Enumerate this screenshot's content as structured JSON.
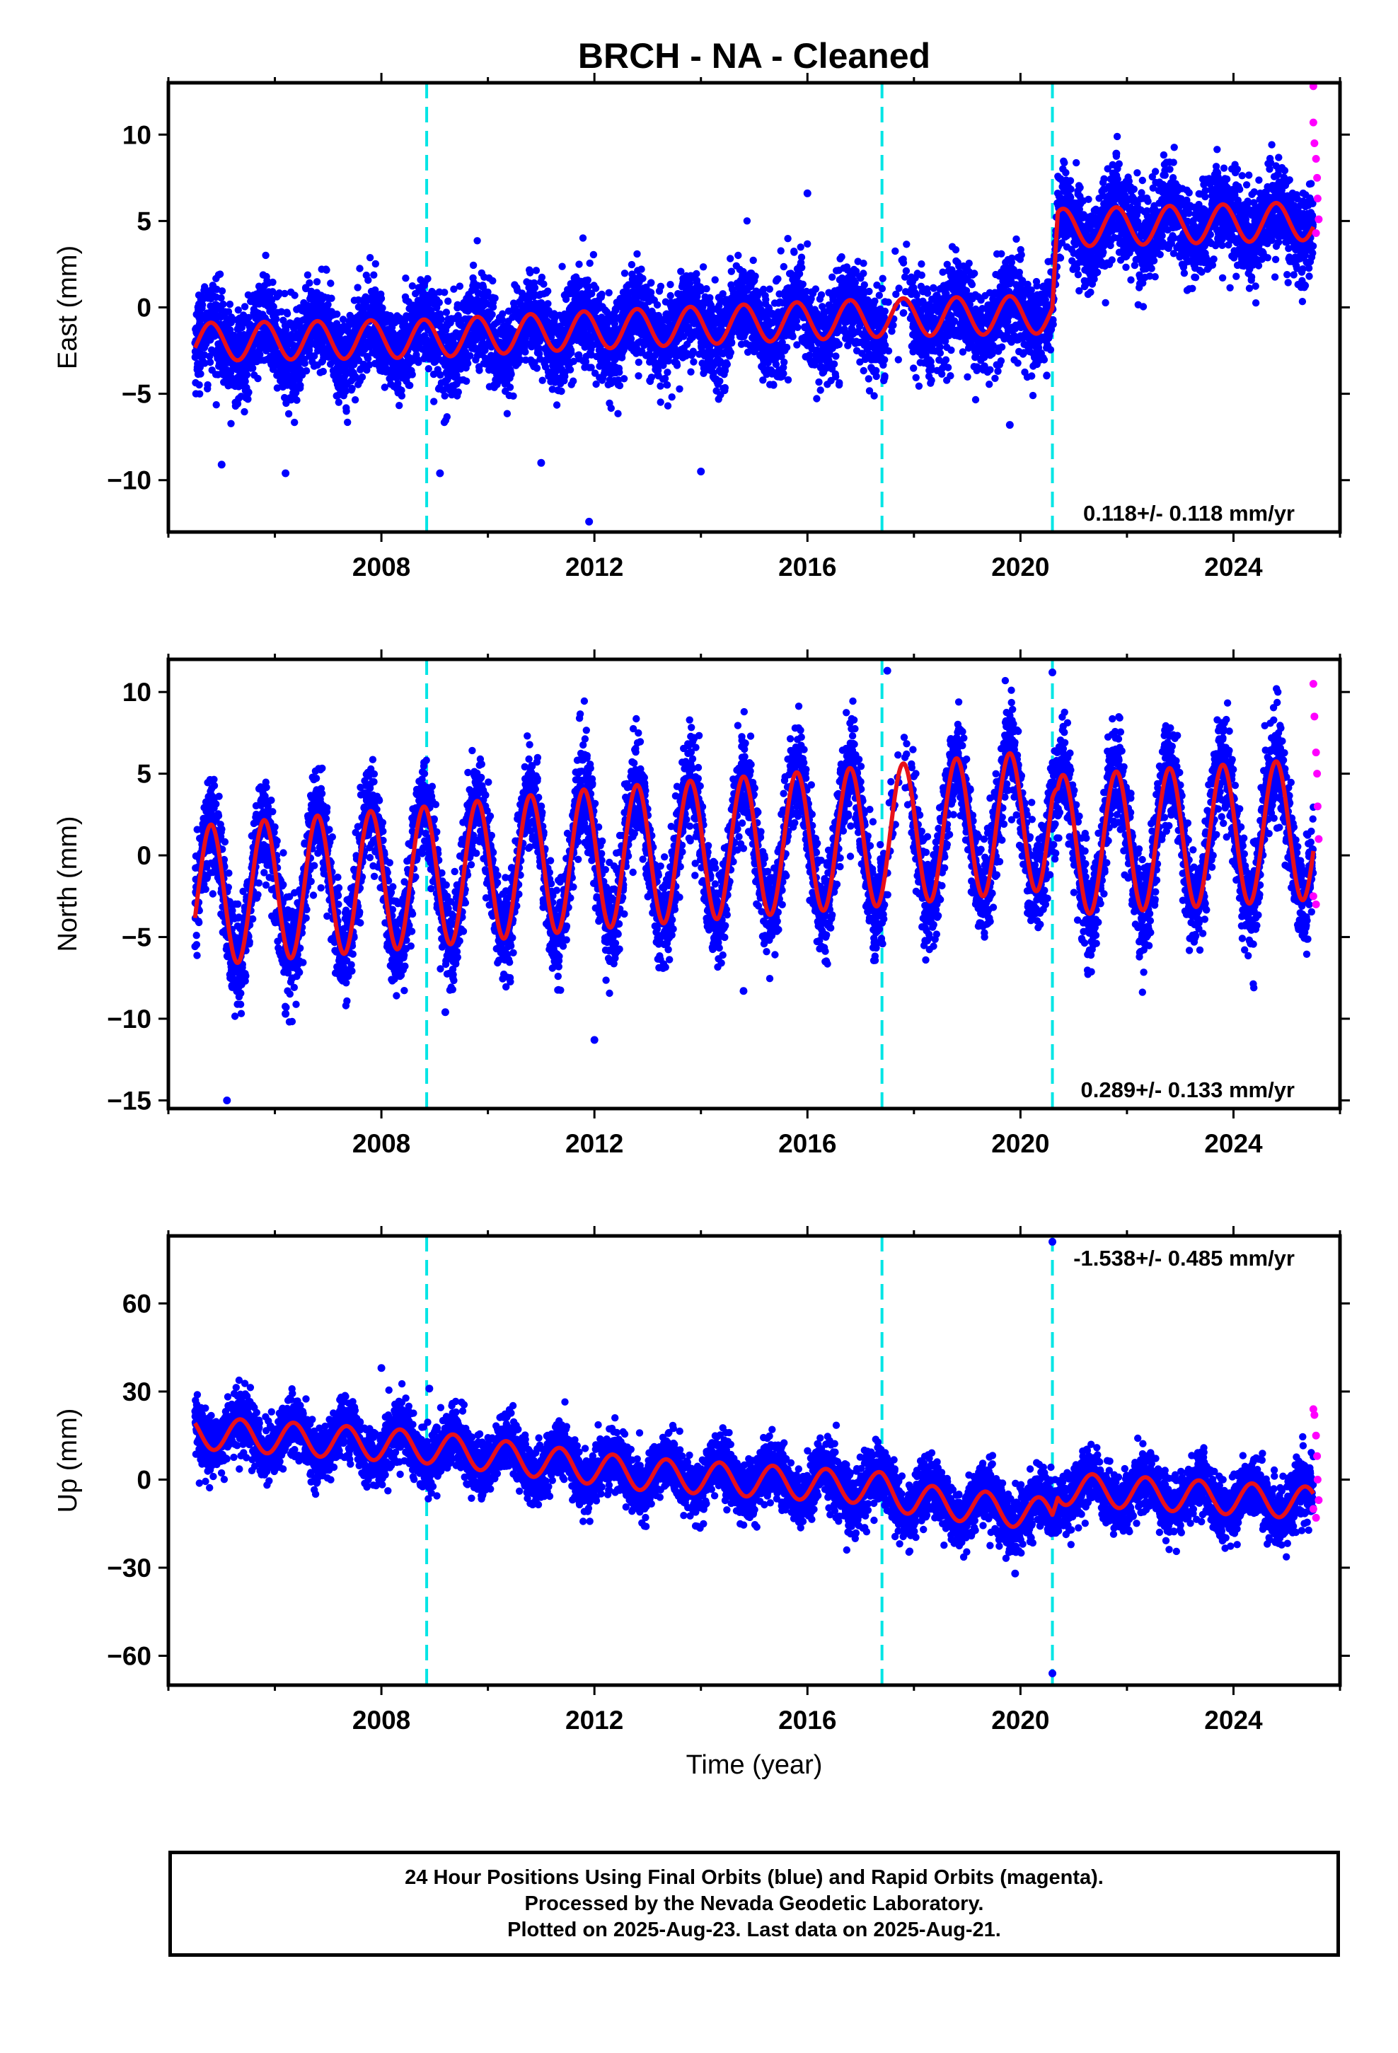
{
  "chart_data": [
    {
      "type": "scatter",
      "panel": "east",
      "title": "BRCH  - NA - Cleaned",
      "ylabel": "East (mm)",
      "xlim": [
        2004.0,
        2026.0
      ],
      "ylim": [
        -13,
        13
      ],
      "yticks": [
        -10,
        -5,
        0,
        5,
        10
      ],
      "xticks": [
        2008,
        2012,
        2016,
        2020,
        2024
      ],
      "rate_text": "0.118+/- 0.118 mm/yr",
      "offset_epochs": [
        2008.85,
        2017.4,
        2020.6
      ],
      "series": [
        {
          "name": "Final Orbits",
          "color": "#0000ff",
          "start": 2004.5,
          "end": 2025.5,
          "trend": [
            [
              2004.5,
              -2.0
            ],
            [
              2008.85,
              -1.8
            ],
            [
              2012.0,
              -1.3
            ],
            [
              2017.4,
              -0.6
            ],
            [
              2020.6,
              -0.4
            ],
            [
              2020.7,
              4.6
            ],
            [
              2025.5,
              5.0
            ]
          ],
          "scatter_sd": 1.3,
          "outliers": [
            [
              2005.0,
              -9.1
            ],
            [
              2006.2,
              -9.6
            ],
            [
              2009.1,
              -9.6
            ],
            [
              2011.0,
              -9.0
            ],
            [
              2011.9,
              -12.4
            ],
            [
              2014.0,
              -9.5
            ],
            [
              2019.8,
              -6.8
            ],
            [
              2016.0,
              6.6
            ],
            [
              2021.8,
              8.9
            ]
          ]
        },
        {
          "name": "Rapid Orbits",
          "color": "#ff00ff",
          "start": 2025.45,
          "end": 2025.62,
          "points": [
            [
              2025.5,
              12.8
            ],
            [
              2025.5,
              10.7
            ],
            [
              2025.52,
              9.5
            ],
            [
              2025.55,
              8.6
            ],
            [
              2025.57,
              7.5
            ],
            [
              2025.58,
              6.3
            ],
            [
              2025.6,
              5.1
            ],
            [
              2025.55,
              4.3
            ]
          ]
        }
      ],
      "model": {
        "name": "Model fit",
        "color": "#e8101a",
        "amplitude": 1.1,
        "phase": 0.55,
        "annual_peak_shift": 0.0
      }
    },
    {
      "type": "scatter",
      "panel": "north",
      "ylabel": "North (mm)",
      "xlim": [
        2004.0,
        2026.0
      ],
      "ylim": [
        -15.5,
        12
      ],
      "yticks": [
        -15,
        -10,
        -5,
        0,
        5,
        10
      ],
      "xticks": [
        2008,
        2012,
        2016,
        2020,
        2024
      ],
      "rate_text": "0.289+/- 0.133 mm/yr",
      "offset_epochs": [
        2008.85,
        2017.4,
        2020.6
      ],
      "series": [
        {
          "name": "Final Orbits",
          "color": "#0000ff",
          "start": 2004.5,
          "end": 2025.5,
          "trend": [
            [
              2004.5,
              -2.5
            ],
            [
              2008.85,
              -1.3
            ],
            [
              2012.0,
              -0.2
            ],
            [
              2017.4,
              1.2
            ],
            [
              2020.6,
              2.2
            ],
            [
              2020.7,
              0.6
            ],
            [
              2025.5,
              1.6
            ]
          ],
          "scatter_sd": 1.5,
          "outliers": [
            [
              2005.1,
              -15.0
            ],
            [
              2006.2,
              -9.7
            ],
            [
              2009.2,
              -9.6
            ],
            [
              2012.0,
              -11.3
            ],
            [
              2014.8,
              -8.3
            ],
            [
              2017.5,
              11.3
            ],
            [
              2020.6,
              11.2
            ]
          ]
        },
        {
          "name": "Rapid Orbits",
          "color": "#ff00ff",
          "start": 2025.45,
          "end": 2025.62,
          "points": [
            [
              2025.5,
              10.5
            ],
            [
              2025.52,
              8.5
            ],
            [
              2025.55,
              6.3
            ],
            [
              2025.57,
              5.0
            ],
            [
              2025.58,
              3.0
            ],
            [
              2025.6,
              1.0
            ],
            [
              2025.5,
              -2.5
            ],
            [
              2025.55,
              -3.0
            ]
          ]
        }
      ],
      "model": {
        "name": "Model fit",
        "color": "#e8101a",
        "amplitude": 4.3,
        "phase": 0.55,
        "annual_peak_shift": 0.0
      }
    },
    {
      "type": "scatter",
      "panel": "up",
      "ylabel": "Up (mm)",
      "xlabel": "Time (year)",
      "xlim": [
        2004.0,
        2026.0
      ],
      "ylim": [
        -70,
        83
      ],
      "yticks": [
        -60,
        -30,
        0,
        30,
        60
      ],
      "xticks": [
        2008,
        2012,
        2016,
        2020,
        2024
      ],
      "rate_text": "-1.538+/- 0.485 mm/yr",
      "offset_epochs": [
        2008.85,
        2017.4,
        2020.6
      ],
      "series": [
        {
          "name": "Final Orbits",
          "color": "#0000ff",
          "start": 2004.5,
          "end": 2025.5,
          "trend": [
            [
              2004.5,
              16.0
            ],
            [
              2008.85,
              11.0
            ],
            [
              2012.8,
              2.0
            ],
            [
              2017.4,
              -3.0
            ],
            [
              2018.0,
              -7.0
            ],
            [
              2020.6,
              -12.0
            ],
            [
              2020.7,
              -3.0
            ],
            [
              2025.5,
              -8.0
            ]
          ],
          "scatter_sd": 5.0,
          "outliers": [
            [
              2008.0,
              38.0
            ],
            [
              2008.9,
              31.0
            ],
            [
              2020.6,
              81.0
            ],
            [
              2020.6,
              -66.0
            ],
            [
              2019.9,
              -32.0
            ]
          ]
        },
        {
          "name": "Rapid Orbits",
          "color": "#ff00ff",
          "start": 2025.45,
          "end": 2025.62,
          "points": [
            [
              2025.5,
              24.0
            ],
            [
              2025.52,
              22.0
            ],
            [
              2025.55,
              15.0
            ],
            [
              2025.57,
              8.0
            ],
            [
              2025.58,
              0.0
            ],
            [
              2025.6,
              -7.0
            ],
            [
              2025.5,
              -10.0
            ],
            [
              2025.55,
              -13.0
            ]
          ]
        }
      ],
      "model": {
        "name": "Model fit",
        "color": "#e8101a",
        "amplitude": 5.5,
        "phase": 0.1,
        "annual_peak_shift": 0.0
      }
    }
  ],
  "footer": {
    "line1": "24 Hour Positions Using Final Orbits (blue) and Rapid Orbits (magenta).",
    "line2": "Processed by the Nevada Geodetic Laboratory.",
    "line3": "Plotted on 2025-Aug-23. Last data on 2025-Aug-21."
  },
  "colors": {
    "final_orbits": "#0000ff",
    "rapid_orbits": "#ff00ff",
    "model": "#e8101a",
    "offsets": "#00e5e5"
  }
}
